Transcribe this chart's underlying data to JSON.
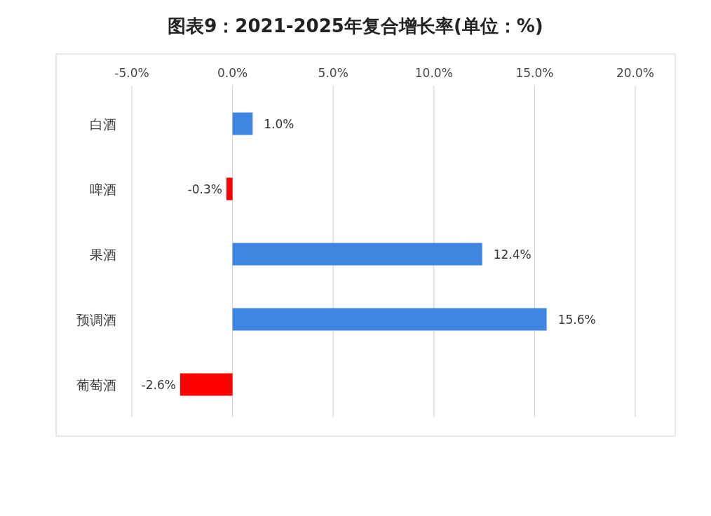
{
  "chart_data": {
    "type": "bar",
    "orientation": "horizontal",
    "title": "图表9：2021-2025年复合增长率(单位：%)",
    "categories": [
      "白酒",
      "啤酒",
      "果酒",
      "预调酒",
      "葡萄酒"
    ],
    "values": [
      1.0,
      -0.3,
      12.4,
      15.6,
      -2.6
    ],
    "colors": [
      "#3f86e2",
      "#ff0000",
      "#3f86e2",
      "#3f86e2",
      "#ff0000"
    ],
    "value_labels": [
      "1.0%",
      "-0.3%",
      "12.4%",
      "15.6%",
      "-2.6%"
    ],
    "xlim": [
      -5,
      20
    ],
    "xticks": [
      {
        "value": -5,
        "label": "-5.0%"
      },
      {
        "value": 0,
        "label": "0.0%"
      },
      {
        "value": 5,
        "label": "5.0%"
      },
      {
        "value": 10,
        "label": "10.0%"
      },
      {
        "value": 15,
        "label": "15.0%"
      },
      {
        "value": 20,
        "label": "20.0%"
      }
    ],
    "grid": "x"
  }
}
